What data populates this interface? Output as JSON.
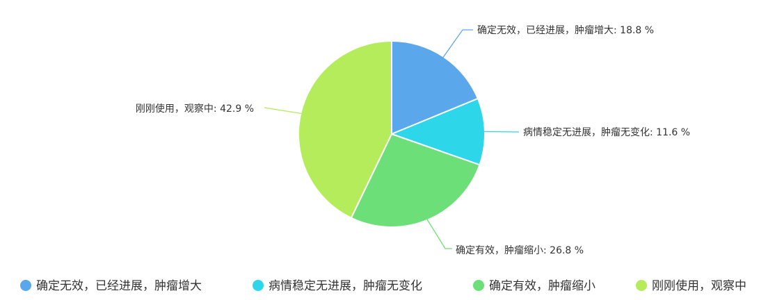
{
  "chart_data": {
    "type": "pie",
    "title": "",
    "legend_position": "bottom",
    "slices": [
      {
        "name": "确定无效，已经进展，肿瘤增大",
        "value": 18.8,
        "label": "确定无效，已经进展，肿瘤增大: 18.8 %",
        "color": "#5aa7ec"
      },
      {
        "name": "病情稳定无进展，肿瘤无变化",
        "value": 11.6,
        "label": "病情稳定无进展，肿瘤无变化: 11.6 %",
        "color": "#2ed6ea"
      },
      {
        "name": "确定有效，肿瘤缩小",
        "value": 26.8,
        "label": "确定有效，肿瘤缩小: 26.8 %",
        "color": "#6ddf78"
      },
      {
        "name": "刚刚使用，观察中",
        "value": 42.9,
        "label": "刚刚使用，观察中: 42.9 %",
        "color": "#b5ec5c"
      }
    ]
  }
}
